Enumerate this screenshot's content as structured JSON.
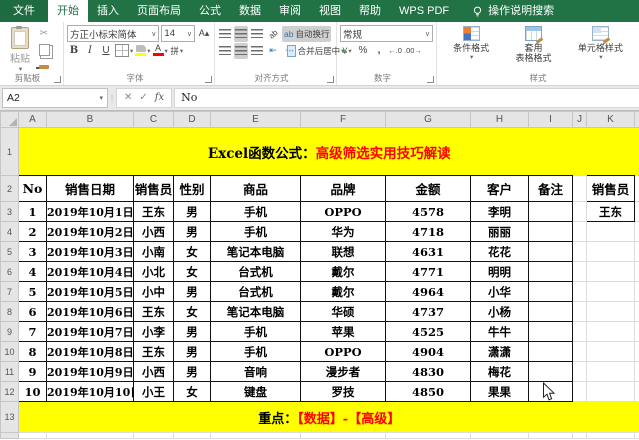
{
  "tab_bar": {
    "tabs": [
      "文件",
      "开始",
      "插入",
      "页面布局",
      "公式",
      "数据",
      "审阅",
      "视图",
      "帮助",
      "WPS PDF"
    ],
    "selected_tab": "开始",
    "search_label": "操作说明搜索"
  },
  "ribbon": {
    "clipboard": {
      "paste_label": "粘贴",
      "group_label": "剪贴板"
    },
    "font": {
      "font_name": "方正小标宋简体",
      "font_size": "14",
      "bold": "B",
      "italic": "I",
      "underline": "U",
      "phonetic": "拼",
      "group_label": "字体"
    },
    "alignment": {
      "wrap_label": "自动换行",
      "merge_label": "合并后居中",
      "group_label": "对齐方式"
    },
    "number": {
      "format_selected": "常规",
      "currency": "¥",
      "percent": "%",
      "comma": ",",
      "inc_decimal": "←.0",
      "dec_decimal": ".00→",
      "group_label": "数字"
    },
    "styles": {
      "conditional": "条件格式",
      "format_table_line1": "套用",
      "format_table_line2": "表格格式",
      "cell_styles": "单元格样式",
      "group_label": "样式"
    }
  },
  "formula_bar": {
    "name_box": "A2",
    "formula": "No"
  },
  "sheet": {
    "col_letters": [
      "A",
      "B",
      "C",
      "D",
      "E",
      "F",
      "G",
      "H",
      "I",
      "J",
      "K"
    ],
    "row_numbers": [
      "1",
      "2",
      "3",
      "4",
      "5",
      "6",
      "7",
      "8",
      "9",
      "10",
      "11",
      "12",
      "13"
    ],
    "title": {
      "black": "Excel函数公式：",
      "red": "高级筛选实用技巧解读"
    },
    "headers": [
      "No",
      "销售日期",
      "销售员",
      "性别",
      "商品",
      "品牌",
      "金额",
      "客户",
      "备注"
    ],
    "criteria": {
      "header": "销售员",
      "value": "王东"
    },
    "rows": [
      [
        "1",
        "2019年10月1日",
        "王东",
        "男",
        "手机",
        "OPPO",
        "4578",
        "李明"
      ],
      [
        "2",
        "2019年10月2日",
        "小西",
        "男",
        "手机",
        "华为",
        "4718",
        "丽丽"
      ],
      [
        "3",
        "2019年10月3日",
        "小南",
        "女",
        "笔记本电脑",
        "联想",
        "4631",
        "花花"
      ],
      [
        "4",
        "2019年10月4日",
        "小北",
        "女",
        "台式机",
        "戴尔",
        "4771",
        "明明"
      ],
      [
        "5",
        "2019年10月5日",
        "小中",
        "男",
        "台式机",
        "戴尔",
        "4964",
        "小华"
      ],
      [
        "6",
        "2019年10月6日",
        "王东",
        "女",
        "笔记本电脑",
        "华硕",
        "4737",
        "小杨"
      ],
      [
        "7",
        "2019年10月7日",
        "小李",
        "男",
        "手机",
        "苹果",
        "4525",
        "牛牛"
      ],
      [
        "8",
        "2019年10月8日",
        "王东",
        "男",
        "手机",
        "OPPO",
        "4904",
        "潇潇"
      ],
      [
        "9",
        "2019年10月9日",
        "小西",
        "男",
        "音响",
        "漫步者",
        "4830",
        "梅花"
      ],
      [
        "10",
        "2019年10月10日",
        "小王",
        "女",
        "键盘",
        "罗技",
        "4850",
        "果果"
      ]
    ],
    "footer": {
      "black": "重点：",
      "red": "【数据】-【高级】"
    }
  },
  "colors": {
    "excel_green": "#217346",
    "highlight_yellow": "#ffff00",
    "accent_red": "#ff0000"
  }
}
